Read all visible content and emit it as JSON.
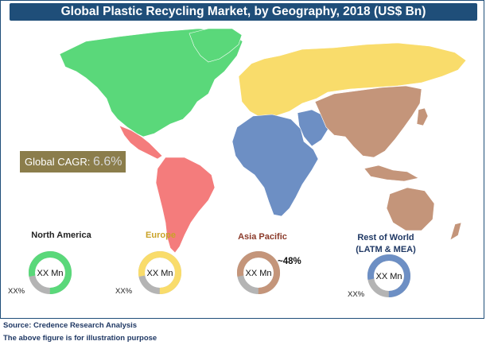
{
  "chart_data": {
    "type": "pie",
    "title": "Global Plastic Recycling Market, by Geography, 2018 (US$ Bn)",
    "annotation": {
      "label": "Global CAGR:",
      "value": "6.6%"
    },
    "regions": [
      {
        "name": "North America",
        "name_line2": "",
        "center_label": "XX Mn",
        "pct_label": "XX%",
        "share": 0.78,
        "color": "#5ad87a"
      },
      {
        "name": "Europe",
        "name_line2": "",
        "center_label": "XX Mn",
        "pct_label": "XX%",
        "share": 0.78,
        "color": "#f9dc6b"
      },
      {
        "name": "Asia Pacific",
        "name_line2": "",
        "center_label": "XX Mn",
        "pct_label": "~48%",
        "share": 0.78,
        "color": "#c4957a"
      },
      {
        "name": "Rest of World",
        "name_line2": "(LATM & MEA)",
        "center_label": "XX Mn",
        "pct_label": "XX%",
        "share": 0.78,
        "color": "#6d8fc4"
      }
    ],
    "remainder_color": "#b4b4b4"
  },
  "footer": {
    "source": "Source: Credence Research Analysis",
    "note": "The above figure is for illustration purpose"
  },
  "colors": {
    "title_bg": "#1f4e79",
    "north_america": "#5ad87a",
    "latin_america": "#f47c7c",
    "europe_russia": "#f9dc6b",
    "africa": "#6d8fc4",
    "asia_pacific": "#c4957a",
    "cagr_box": "#8b7d4b"
  }
}
